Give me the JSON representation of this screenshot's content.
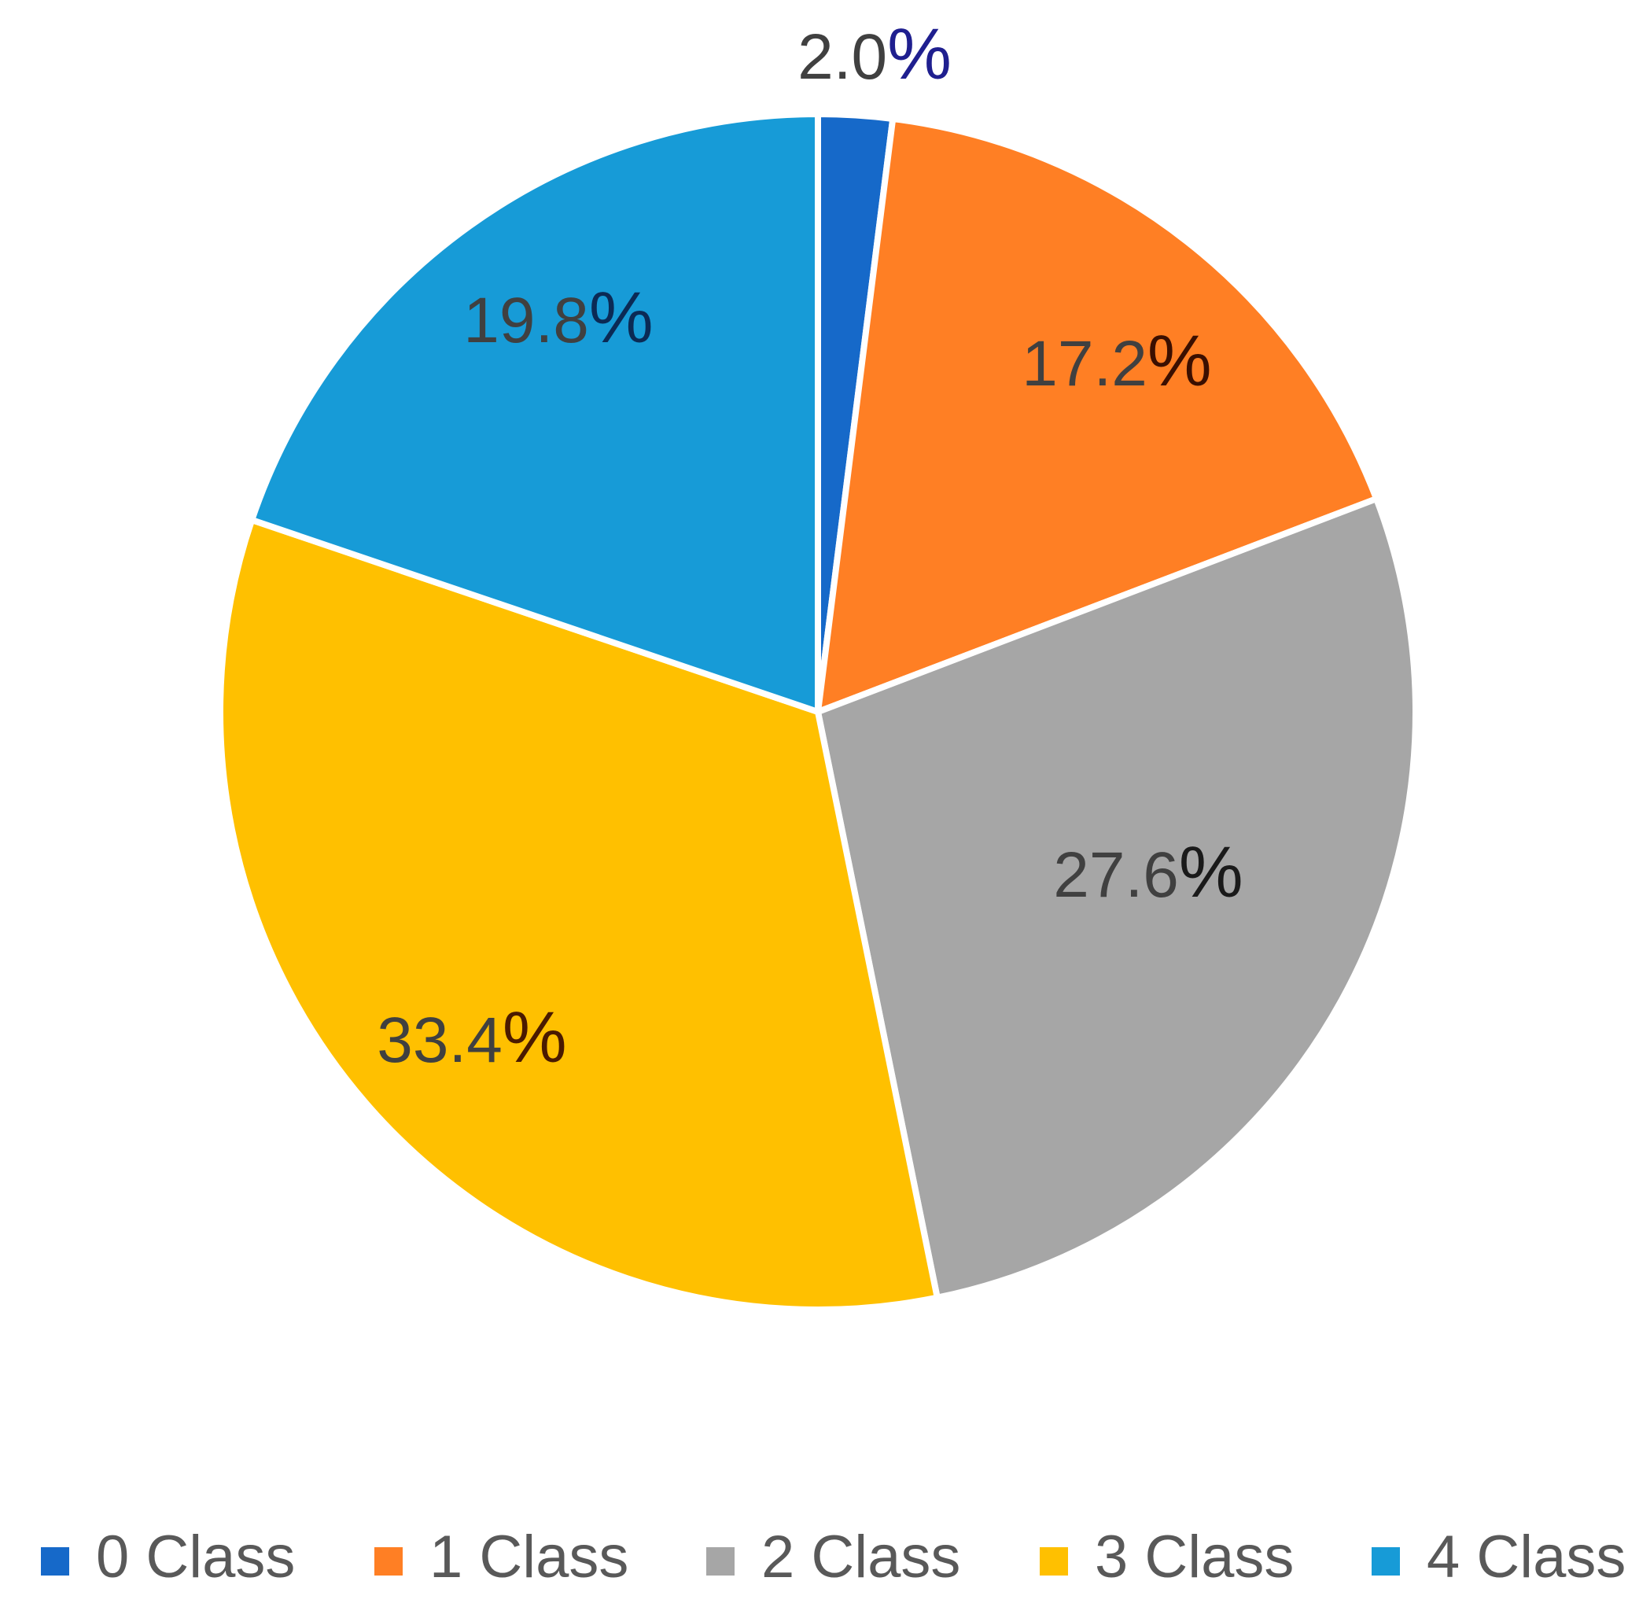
{
  "chart_data": {
    "type": "pie",
    "title": "",
    "start_angle_deg": 0,
    "direction": "clockwise",
    "legend_position": "bottom",
    "slices": [
      {
        "label": "0 Class",
        "value": 2.0,
        "value_text": "2.0",
        "pct_symbol": "%",
        "color": "#1669C9",
        "pct_color": "#1F1F8F"
      },
      {
        "label": "1 Class",
        "value": 17.2,
        "value_text": "17.2",
        "pct_symbol": "%",
        "color": "#FF7F24",
        "pct_color": "#3B0F00"
      },
      {
        "label": "2 Class",
        "value": 27.6,
        "value_text": "27.6",
        "pct_symbol": "%",
        "color": "#A6A6A6",
        "pct_color": "#1A1A1A"
      },
      {
        "label": "3 Class",
        "value": 33.4,
        "value_text": "33.4",
        "pct_symbol": "%",
        "color": "#FFC000",
        "pct_color": "#4A1A00"
      },
      {
        "label": "4 Class",
        "value": 19.8,
        "value_text": "19.8",
        "pct_symbol": "%",
        "color": "#179BD7",
        "pct_color": "#0B2A55"
      }
    ]
  }
}
